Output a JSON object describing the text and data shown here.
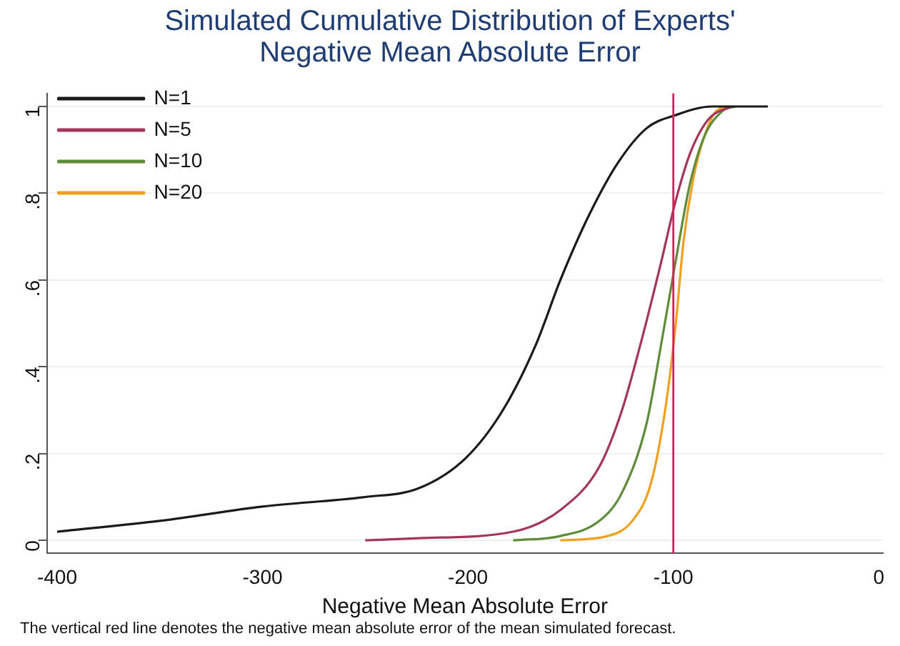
{
  "chart_data": {
    "type": "line",
    "title": "Simulated Cumulative Distribution of Experts' Negative Mean Absolute Error",
    "xlabel": "Negative Mean Absolute Error",
    "annotations": [
      "The vertical red line denotes the negative mean absolute error of the mean simulated forecast."
    ],
    "xlim": [
      -405,
      2
    ],
    "xticks": [
      -400,
      -300,
      -200,
      -100,
      0
    ],
    "ylim": [
      -0.03,
      1.03
    ],
    "yticks": [
      0,
      {
        "value": 0.2,
        "label": ".2"
      },
      {
        "value": 0.4,
        "label": ".4"
      },
      {
        "value": 0.6,
        "label": ".6"
      },
      {
        "value": 0.8,
        "label": ".8"
      },
      1
    ],
    "grid": "y",
    "legend": "top left",
    "marker": "none",
    "line_style": "solid",
    "ref_lines": [
      {
        "axis": "x",
        "value": -100,
        "color": "#d6205a"
      }
    ],
    "series": [
      {
        "name": "N=1",
        "color": "#1a1a1a",
        "x": [
          -400,
          -350,
          -300,
          -250,
          -224,
          -201,
          -183,
          -167,
          -155,
          -141,
          -127,
          -113,
          -99,
          -81,
          -54
        ],
        "values": [
          0.02,
          0.045,
          0.078,
          0.1,
          0.12,
          0.19,
          0.3,
          0.45,
          0.6,
          0.75,
          0.87,
          0.95,
          0.98,
          1,
          1
        ]
      },
      {
        "name": "N=5",
        "color": "#a3365a",
        "x": [
          -250,
          -224,
          -178,
          -155,
          -136,
          -125,
          -115,
          -106,
          -99,
          -92,
          -83,
          -72
        ],
        "values": [
          0,
          0.005,
          0.02,
          0.07,
          0.17,
          0.3,
          0.47,
          0.64,
          0.78,
          0.89,
          0.97,
          1
        ]
      },
      {
        "name": "N=10",
        "color": "#5e8c3a",
        "x": [
          -178,
          -155,
          -136,
          -125,
          -113,
          -106,
          -99,
          -92,
          -85,
          -76,
          -70
        ],
        "values": [
          0,
          0.01,
          0.045,
          0.11,
          0.27,
          0.45,
          0.64,
          0.82,
          0.93,
          0.99,
          1
        ]
      },
      {
        "name": "N=20",
        "color": "#f0a020",
        "x": [
          -155,
          -132,
          -120,
          -111,
          -104,
          -99,
          -95,
          -90,
          -85,
          -79,
          -72
        ],
        "values": [
          0,
          0.01,
          0.045,
          0.13,
          0.3,
          0.49,
          0.69,
          0.84,
          0.93,
          0.99,
          1
        ]
      }
    ]
  }
}
